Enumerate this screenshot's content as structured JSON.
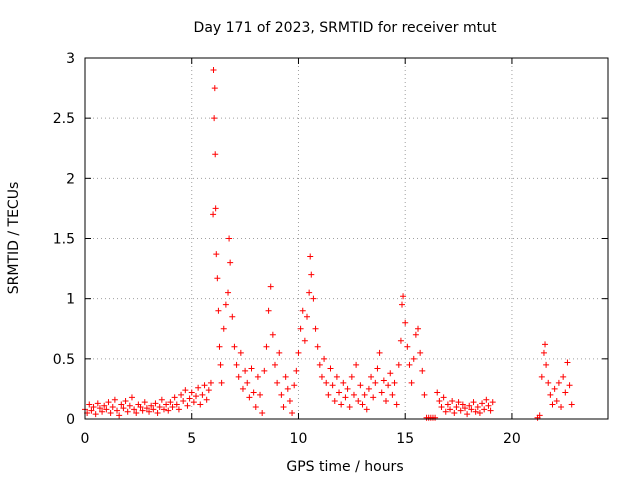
{
  "chart_data": {
    "type": "scatter",
    "title": "Day 171 of 2023, SRMTID for receiver mtut",
    "xlabel": "GPS time / hours",
    "ylabel": "SRMTID / TECUs",
    "xlim": [
      0,
      24.5
    ],
    "ylim": [
      0,
      3
    ],
    "x_ticks": [
      0,
      5,
      10,
      15,
      20
    ],
    "y_ticks": [
      0,
      0.5,
      1,
      1.5,
      2,
      2.5,
      3
    ],
    "x_tick_labels": [
      "0",
      "5",
      "10",
      "15",
      "20"
    ],
    "y_tick_labels": [
      "0",
      "0.5",
      "1",
      "1.5",
      "2",
      "2.5",
      "3"
    ],
    "grid": true,
    "marker": "+",
    "color": "#ff0000",
    "series": [
      {
        "name": "SRMTID",
        "points": [
          [
            0.0,
            0.08
          ],
          [
            0.1,
            0.05
          ],
          [
            0.2,
            0.12
          ],
          [
            0.3,
            0.07
          ],
          [
            0.4,
            0.1
          ],
          [
            0.5,
            0.04
          ],
          [
            0.6,
            0.13
          ],
          [
            0.7,
            0.09
          ],
          [
            0.8,
            0.06
          ],
          [
            0.9,
            0.11
          ],
          [
            1.0,
            0.08
          ],
          [
            1.1,
            0.14
          ],
          [
            1.2,
            0.05
          ],
          [
            1.3,
            0.1
          ],
          [
            1.4,
            0.16
          ],
          [
            1.5,
            0.07
          ],
          [
            1.6,
            0.03
          ],
          [
            1.7,
            0.12
          ],
          [
            1.8,
            0.09
          ],
          [
            1.9,
            0.15
          ],
          [
            2.0,
            0.06
          ],
          [
            2.1,
            0.11
          ],
          [
            2.2,
            0.18
          ],
          [
            2.3,
            0.08
          ],
          [
            2.4,
            0.05
          ],
          [
            2.5,
            0.12
          ],
          [
            2.6,
            0.1
          ],
          [
            2.7,
            0.07
          ],
          [
            2.8,
            0.14
          ],
          [
            2.9,
            0.09
          ],
          [
            3.0,
            0.06
          ],
          [
            3.1,
            0.11
          ],
          [
            3.2,
            0.08
          ],
          [
            3.3,
            0.13
          ],
          [
            3.4,
            0.05
          ],
          [
            3.5,
            0.1
          ],
          [
            3.6,
            0.16
          ],
          [
            3.7,
            0.08
          ],
          [
            3.8,
            0.12
          ],
          [
            3.9,
            0.07
          ],
          [
            4.0,
            0.14
          ],
          [
            4.1,
            0.1
          ],
          [
            4.2,
            0.18
          ],
          [
            4.3,
            0.12
          ],
          [
            4.4,
            0.08
          ],
          [
            4.5,
            0.2
          ],
          [
            4.6,
            0.15
          ],
          [
            4.7,
            0.24
          ],
          [
            4.8,
            0.11
          ],
          [
            4.9,
            0.17
          ],
          [
            5.0,
            0.22
          ],
          [
            5.1,
            0.14
          ],
          [
            5.2,
            0.19
          ],
          [
            5.3,
            0.26
          ],
          [
            5.4,
            0.12
          ],
          [
            5.5,
            0.2
          ],
          [
            5.6,
            0.28
          ],
          [
            5.7,
            0.16
          ],
          [
            5.8,
            0.24
          ],
          [
            5.9,
            0.3
          ],
          [
            6.0,
            1.7
          ],
          [
            6.02,
            2.9
          ],
          [
            6.05,
            2.5
          ],
          [
            6.08,
            2.75
          ],
          [
            6.1,
            2.2
          ],
          [
            6.12,
            1.75
          ],
          [
            6.15,
            1.37
          ],
          [
            6.2,
            1.17
          ],
          [
            6.25,
            0.9
          ],
          [
            6.3,
            0.6
          ],
          [
            6.35,
            0.45
          ],
          [
            6.4,
            0.3
          ],
          [
            6.5,
            0.75
          ],
          [
            6.6,
            0.95
          ],
          [
            6.7,
            1.05
          ],
          [
            6.75,
            1.5
          ],
          [
            6.8,
            1.3
          ],
          [
            6.9,
            0.85
          ],
          [
            7.0,
            0.6
          ],
          [
            7.1,
            0.45
          ],
          [
            7.2,
            0.35
          ],
          [
            7.3,
            0.55
          ],
          [
            7.4,
            0.25
          ],
          [
            7.5,
            0.4
          ],
          [
            7.6,
            0.3
          ],
          [
            7.7,
            0.18
          ],
          [
            7.8,
            0.42
          ],
          [
            7.9,
            0.22
          ],
          [
            8.0,
            0.1
          ],
          [
            8.1,
            0.35
          ],
          [
            8.2,
            0.2
          ],
          [
            8.3,
            0.05
          ],
          [
            8.4,
            0.4
          ],
          [
            8.5,
            0.6
          ],
          [
            8.6,
            0.9
          ],
          [
            8.7,
            1.1
          ],
          [
            8.8,
            0.7
          ],
          [
            8.9,
            0.45
          ],
          [
            9.0,
            0.3
          ],
          [
            9.1,
            0.55
          ],
          [
            9.2,
            0.2
          ],
          [
            9.3,
            0.1
          ],
          [
            9.4,
            0.35
          ],
          [
            9.5,
            0.25
          ],
          [
            9.6,
            0.15
          ],
          [
            9.7,
            0.05
          ],
          [
            9.8,
            0.28
          ],
          [
            9.9,
            0.4
          ],
          [
            10.0,
            0.55
          ],
          [
            10.1,
            0.75
          ],
          [
            10.2,
            0.9
          ],
          [
            10.3,
            0.65
          ],
          [
            10.4,
            0.85
          ],
          [
            10.5,
            1.05
          ],
          [
            10.55,
            1.35
          ],
          [
            10.6,
            1.2
          ],
          [
            10.7,
            1.0
          ],
          [
            10.8,
            0.75
          ],
          [
            10.9,
            0.6
          ],
          [
            11.0,
            0.45
          ],
          [
            11.1,
            0.35
          ],
          [
            11.2,
            0.5
          ],
          [
            11.3,
            0.3
          ],
          [
            11.4,
            0.2
          ],
          [
            11.5,
            0.42
          ],
          [
            11.6,
            0.28
          ],
          [
            11.7,
            0.15
          ],
          [
            11.8,
            0.35
          ],
          [
            11.9,
            0.22
          ],
          [
            12.0,
            0.12
          ],
          [
            12.1,
            0.3
          ],
          [
            12.2,
            0.18
          ],
          [
            12.3,
            0.25
          ],
          [
            12.4,
            0.1
          ],
          [
            12.5,
            0.35
          ],
          [
            12.6,
            0.2
          ],
          [
            12.7,
            0.45
          ],
          [
            12.8,
            0.15
          ],
          [
            12.9,
            0.28
          ],
          [
            13.0,
            0.12
          ],
          [
            13.1,
            0.2
          ],
          [
            13.2,
            0.08
          ],
          [
            13.3,
            0.25
          ],
          [
            13.4,
            0.35
          ],
          [
            13.5,
            0.18
          ],
          [
            13.6,
            0.3
          ],
          [
            13.7,
            0.42
          ],
          [
            13.8,
            0.55
          ],
          [
            13.9,
            0.22
          ],
          [
            14.0,
            0.32
          ],
          [
            14.1,
            0.15
          ],
          [
            14.2,
            0.28
          ],
          [
            14.3,
            0.38
          ],
          [
            14.4,
            0.2
          ],
          [
            14.5,
            0.3
          ],
          [
            14.6,
            0.12
          ],
          [
            14.7,
            0.45
          ],
          [
            14.8,
            0.65
          ],
          [
            14.85,
            0.95
          ],
          [
            14.9,
            1.02
          ],
          [
            15.0,
            0.8
          ],
          [
            15.1,
            0.6
          ],
          [
            15.2,
            0.45
          ],
          [
            15.3,
            0.3
          ],
          [
            15.4,
            0.5
          ],
          [
            15.5,
            0.7
          ],
          [
            15.6,
            0.75
          ],
          [
            15.7,
            0.55
          ],
          [
            15.8,
            0.4
          ],
          [
            15.9,
            0.2
          ],
          [
            16.0,
            0.01
          ],
          [
            16.1,
            0.01
          ],
          [
            16.2,
            0.01
          ],
          [
            16.3,
            0.01
          ],
          [
            16.4,
            0.01
          ],
          [
            16.5,
            0.22
          ],
          [
            16.6,
            0.15
          ],
          [
            16.7,
            0.1
          ],
          [
            16.8,
            0.18
          ],
          [
            16.9,
            0.06
          ],
          [
            17.0,
            0.12
          ],
          [
            17.1,
            0.08
          ],
          [
            17.2,
            0.15
          ],
          [
            17.3,
            0.05
          ],
          [
            17.4,
            0.1
          ],
          [
            17.5,
            0.14
          ],
          [
            17.6,
            0.07
          ],
          [
            17.7,
            0.12
          ],
          [
            17.8,
            0.09
          ],
          [
            17.9,
            0.04
          ],
          [
            18.0,
            0.11
          ],
          [
            18.1,
            0.08
          ],
          [
            18.2,
            0.14
          ],
          [
            18.3,
            0.06
          ],
          [
            18.4,
            0.1
          ],
          [
            18.5,
            0.05
          ],
          [
            18.6,
            0.13
          ],
          [
            18.7,
            0.08
          ],
          [
            18.8,
            0.16
          ],
          [
            18.9,
            0.11
          ],
          [
            19.0,
            0.07
          ],
          [
            19.1,
            0.14
          ],
          [
            21.2,
            0.01
          ],
          [
            21.3,
            0.03
          ],
          [
            21.4,
            0.35
          ],
          [
            21.5,
            0.55
          ],
          [
            21.55,
            0.62
          ],
          [
            21.6,
            0.45
          ],
          [
            21.7,
            0.3
          ],
          [
            21.8,
            0.2
          ],
          [
            21.9,
            0.12
          ],
          [
            22.0,
            0.25
          ],
          [
            22.1,
            0.15
          ],
          [
            22.2,
            0.3
          ],
          [
            22.3,
            0.1
          ],
          [
            22.4,
            0.35
          ],
          [
            22.5,
            0.22
          ],
          [
            22.6,
            0.47
          ],
          [
            22.7,
            0.28
          ],
          [
            22.8,
            0.12
          ]
        ]
      }
    ]
  }
}
